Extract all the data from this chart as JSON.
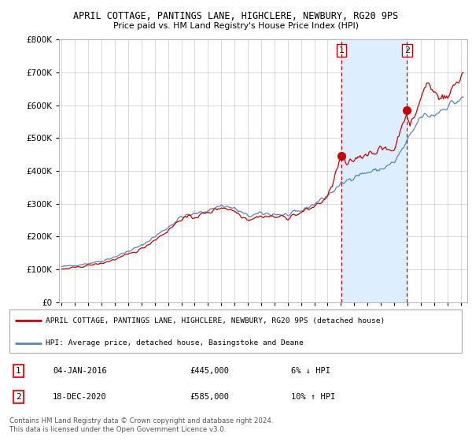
{
  "title": "APRIL COTTAGE, PANTINGS LANE, HIGHCLERE, NEWBURY, RG20 9PS",
  "subtitle": "Price paid vs. HM Land Registry's House Price Index (HPI)",
  "legend_line1": "APRIL COTTAGE, PANTINGS LANE, HIGHCLERE, NEWBURY, RG20 9PS (detached house)",
  "legend_line2": "HPI: Average price, detached house, Basingstoke and Deane",
  "footer1": "Contains HM Land Registry data © Crown copyright and database right 2024.",
  "footer2": "This data is licensed under the Open Government Licence v3.0.",
  "transaction1_date": "04-JAN-2016",
  "transaction1_price": "£445,000",
  "transaction1_hpi": "6% ↓ HPI",
  "transaction1_year": 2016.03,
  "transaction1_value": 445000,
  "transaction2_date": "18-DEC-2020",
  "transaction2_price": "£585,000",
  "transaction2_hpi": "10% ↑ HPI",
  "transaction2_year": 2020.96,
  "transaction2_value": 585000,
  "red_color": "#cc0000",
  "blue_color": "#5588bb",
  "shade_color": "#ddeeff",
  "background_color": "#ffffff",
  "grid_color": "#cccccc",
  "ylim": [
    0,
    800000
  ],
  "xlim_start": 1994.8,
  "xlim_end": 2025.5
}
